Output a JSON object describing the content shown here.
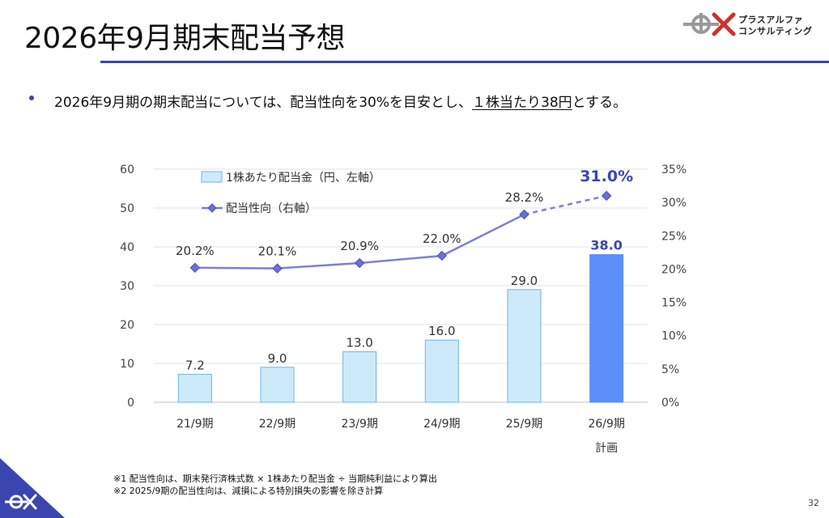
{
  "slide": {
    "title": "2026年9月期末配当予想",
    "page_number": "32",
    "accent_color": "#3a45b0"
  },
  "logo": {
    "line1": "プラスアルファ",
    "line2": "コンサルティング"
  },
  "bullet": {
    "text_before": "2026年9月期の期末配当については、配当性向を30%を目安とし、",
    "text_emphasis": "１株当たり38円",
    "text_after": "とする。"
  },
  "notes": [
    "※1 配当性向は、期末発行済株式数 × 1株あたり配当金 ÷ 当期純利益により算出",
    "※2 2025/9期の配当性向は、減損による特別損失の影響を除き計算"
  ],
  "chart_data": {
    "type": "bar+line",
    "categories": [
      "21/9期",
      "22/9期",
      "23/9期",
      "24/9期",
      "25/9期",
      "26/9期"
    ],
    "category_sublabels": [
      "",
      "",
      "",
      "",
      "",
      "計画"
    ],
    "series": [
      {
        "name": "1株あたり配当金（円、左軸）",
        "type": "bar",
        "axis": "left",
        "values": [
          7.2,
          9.0,
          13.0,
          16.0,
          29.0,
          38.0
        ],
        "labels": [
          "7.2",
          "9.0",
          "13.0",
          "16.0",
          "29.0",
          "38.0"
        ],
        "color": "#cdeafb",
        "border_color": "#6ab6e8",
        "highlight_color": "#5b8ff9",
        "highlight_index": 5
      },
      {
        "name": "配当性向（右軸）",
        "type": "line",
        "axis": "right",
        "values": [
          20.2,
          20.1,
          20.9,
          22.0,
          28.2,
          31.0
        ],
        "labels": [
          "20.2%",
          "20.1%",
          "20.9%",
          "22.0%",
          "28.2%",
          "31.0%"
        ],
        "color": "#7b7fe0",
        "marker_color": "#6a6fd8",
        "dashed_from_index": 4
      }
    ],
    "left_axis": {
      "min": 0,
      "max": 60,
      "ticks": [
        0,
        10,
        20,
        30,
        40,
        50,
        60
      ],
      "tick_labels": [
        "0",
        "10",
        "20",
        "30",
        "40",
        "50",
        "60"
      ]
    },
    "right_axis": {
      "min": 0,
      "max": 35,
      "ticks": [
        0,
        5,
        10,
        15,
        20,
        25,
        30,
        35
      ],
      "tick_labels": [
        "0%",
        "5%",
        "10%",
        "15%",
        "20%",
        "25%",
        "30%",
        "35%"
      ]
    },
    "grid": true,
    "legend_position": "top-left"
  }
}
